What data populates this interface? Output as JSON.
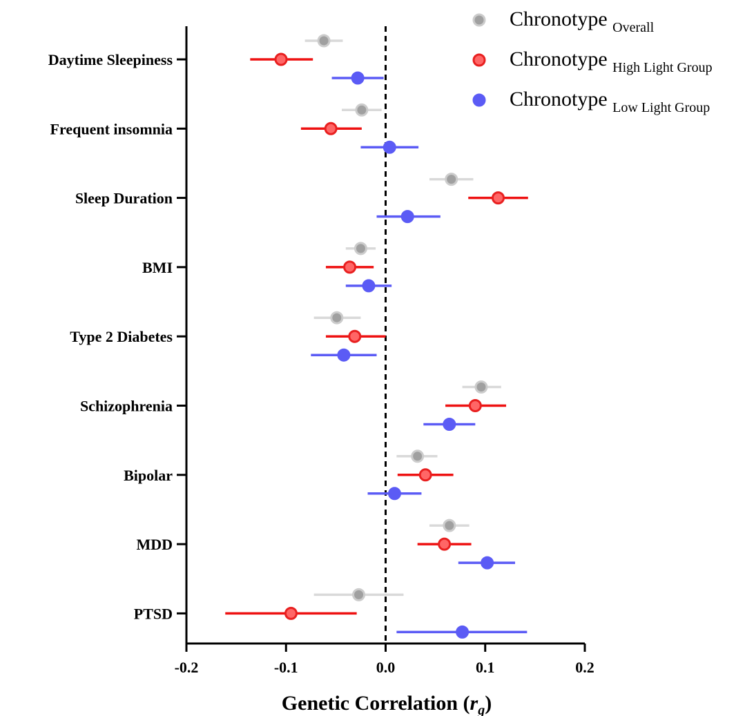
{
  "chart_data": {
    "type": "forest",
    "xlabel_main": "Genetic Correlation (",
    "xlabel_var": "r",
    "xlabel_sub": "g",
    "xlabel_close": ")",
    "xlim": [
      -0.2,
      0.2
    ],
    "xticks": [
      -0.2,
      -0.1,
      0.0,
      0.1,
      0.2
    ],
    "xtick_labels": [
      "-0.2",
      "-0.1",
      "0.0",
      "0.1",
      "0.2"
    ],
    "reference_line": 0,
    "categories": [
      "Daytime Sleepiness",
      "Frequent insomnia",
      "Sleep Duration",
      "BMI",
      "Type 2 Diabetes",
      "Schizophrenia",
      "Bipolar",
      "MDD",
      "PTSD"
    ],
    "series": [
      {
        "name": "Chronotype",
        "name_sub": "Overall",
        "color": "#999999",
        "ci_color": "#d9d9d9",
        "marker_fill": "#a0a0a0",
        "marker_stroke": "#cccccc",
        "estimates": [
          -0.062,
          -0.024,
          0.066,
          -0.025,
          -0.049,
          0.096,
          0.032,
          0.064,
          -0.027
        ],
        "lower": [
          -0.081,
          -0.044,
          0.044,
          -0.04,
          -0.072,
          0.077,
          0.011,
          0.044,
          -0.072
        ],
        "upper": [
          -0.043,
          -0.004,
          0.088,
          -0.01,
          -0.025,
          0.116,
          0.052,
          0.084,
          0.018
        ]
      },
      {
        "name": "Chronotype",
        "name_sub": "High Light Group",
        "color": "#ee1111",
        "ci_color": "#ee1111",
        "marker_fill": "#ff6666",
        "marker_stroke": "#e82020",
        "estimates": [
          -0.105,
          -0.055,
          0.113,
          -0.036,
          -0.031,
          0.09,
          0.04,
          0.059,
          -0.095
        ],
        "lower": [
          -0.136,
          -0.085,
          0.083,
          -0.06,
          -0.06,
          0.06,
          0.012,
          0.032,
          -0.161
        ],
        "upper": [
          -0.073,
          -0.024,
          0.143,
          -0.012,
          0.0,
          0.121,
          0.068,
          0.086,
          -0.029
        ]
      },
      {
        "name": "Chronotype",
        "name_sub": "Low Light  Group",
        "color": "#5b5bf5",
        "ci_color": "#5b5bf5",
        "marker_fill": "#5b5bf5",
        "marker_stroke": "#5b5bf5",
        "estimates": [
          -0.028,
          0.004,
          0.022,
          -0.017,
          -0.042,
          0.064,
          0.009,
          0.102,
          0.077
        ],
        "lower": [
          -0.054,
          -0.025,
          -0.009,
          -0.04,
          -0.075,
          0.038,
          -0.018,
          0.073,
          0.011
        ],
        "upper": [
          -0.002,
          0.033,
          0.055,
          0.006,
          -0.009,
          0.09,
          0.036,
          0.13,
          0.142
        ]
      }
    ]
  }
}
